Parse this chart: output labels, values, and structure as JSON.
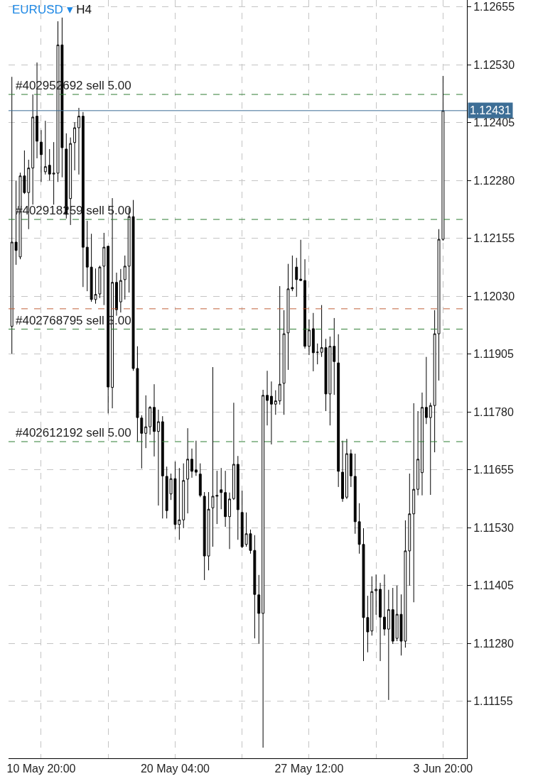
{
  "chart_data": {
    "type": "candlestick",
    "title": "EURUSD ▾",
    "subtitle": "H4",
    "categories": [
      null,
      null,
      null,
      null,
      null,
      null,
      null,
      "10 May 20:00",
      null,
      null,
      null,
      null,
      null,
      null,
      null,
      null,
      null,
      null,
      null,
      null,
      null,
      null,
      null,
      null,
      null,
      null,
      null,
      null,
      null,
      null,
      null,
      null,
      null,
      null,
      null,
      null,
      null,
      null,
      null,
      "20 May 04:00",
      null,
      null,
      null,
      null,
      null,
      null,
      null,
      null,
      null,
      null,
      null,
      null,
      null,
      null,
      null,
      null,
      null,
      null,
      null,
      null,
      null,
      null,
      null,
      null,
      null,
      null,
      null,
      null,
      null,
      null,
      null,
      "27 May 12:00",
      null,
      null,
      null,
      null,
      null,
      null,
      null,
      null,
      null,
      null,
      null,
      null,
      null,
      null,
      null,
      null,
      null,
      null,
      null,
      null,
      null,
      null,
      null,
      null,
      null,
      null,
      null,
      null,
      null,
      null,
      null,
      "3 Jun 20:00"
    ],
    "ohlc": [
      [
        1.11965,
        1.12504,
        1.11906,
        1.12147
      ],
      [
        1.12147,
        1.1228,
        1.12098,
        1.12129
      ],
      [
        1.12115,
        1.12297,
        1.1211,
        1.1229
      ],
      [
        1.1229,
        1.12345,
        1.12251,
        1.12254
      ],
      [
        1.12254,
        1.12325,
        1.12175,
        1.12307
      ],
      [
        1.12307,
        1.12466,
        1.12228,
        1.12417
      ],
      [
        1.12419,
        1.12535,
        1.12328,
        1.12365
      ],
      [
        1.12363,
        1.12389,
        1.12277,
        1.12336
      ],
      [
        1.12299,
        1.12409,
        1.12293,
        1.1231
      ],
      [
        1.12313,
        1.12348,
        1.1228,
        1.12294
      ],
      [
        1.12294,
        1.12363,
        1.12228,
        1.12296
      ],
      [
        1.12296,
        1.12624,
        1.12277,
        1.12573
      ],
      [
        1.12573,
        1.12632,
        1.12287,
        1.12351
      ],
      [
        1.12348,
        1.12382,
        1.12198,
        1.12207
      ],
      [
        1.12241,
        1.12373,
        1.12184,
        1.1236
      ],
      [
        1.12362,
        1.12406,
        1.12302,
        1.12394
      ],
      [
        1.12394,
        1.12437,
        1.12293,
        1.12419
      ],
      [
        1.12419,
        1.12428,
        1.1205,
        1.12136
      ],
      [
        1.12136,
        1.12193,
        1.12041,
        1.12093
      ],
      [
        1.12093,
        1.12165,
        1.12018,
        1.12023
      ],
      [
        1.12023,
        1.1209,
        1.12014,
        1.12034
      ],
      [
        1.12035,
        1.12096,
        1.12026,
        1.12093
      ],
      [
        1.12095,
        1.12167,
        1.12011,
        1.12136
      ],
      [
        1.12138,
        1.12139,
        1.11777,
        1.11834
      ],
      [
        1.11833,
        1.12242,
        1.11788,
        1.1206
      ],
      [
        1.1206,
        1.12081,
        1.11988,
        1.12001
      ],
      [
        1.12018,
        1.12089,
        1.11995,
        1.12064
      ],
      [
        1.12066,
        1.12118,
        1.12023,
        1.12095
      ],
      [
        1.12095,
        1.12221,
        1.12038,
        1.12202
      ],
      [
        1.12202,
        1.12238,
        1.11869,
        1.11874
      ],
      [
        1.11874,
        1.11922,
        1.11716,
        1.11768
      ],
      [
        1.11767,
        1.11773,
        1.11658,
        1.11734
      ],
      [
        1.11734,
        1.11816,
        1.11702,
        1.11748
      ],
      [
        1.11748,
        1.11793,
        1.11731,
        1.1179
      ],
      [
        1.1179,
        1.1184,
        1.11684,
        1.11738
      ],
      [
        1.11738,
        1.11785,
        1.11578,
        1.11759
      ],
      [
        1.11759,
        1.11771,
        1.1155,
        1.11642
      ],
      [
        1.11641,
        1.11662,
        1.1155,
        1.11567
      ],
      [
        1.11603,
        1.11647,
        1.1159,
        1.11636
      ],
      [
        1.11636,
        1.11673,
        1.11527,
        1.11537
      ],
      [
        1.11537,
        1.11659,
        1.11504,
        1.11547
      ],
      [
        1.11547,
        1.11669,
        1.11529,
        1.11632
      ],
      [
        1.11635,
        1.11745,
        1.11561,
        1.11678
      ],
      [
        1.11678,
        1.11701,
        1.11638,
        1.11652
      ],
      [
        1.11655,
        1.11718,
        1.11642,
        1.1165
      ],
      [
        1.11646,
        1.11669,
        1.11596,
        1.116
      ],
      [
        1.11598,
        1.11607,
        1.11417,
        1.11469
      ],
      [
        1.11469,
        1.11607,
        1.11438,
        1.1157
      ],
      [
        1.11573,
        1.11877,
        1.11489,
        1.11598
      ],
      [
        1.11598,
        1.11653,
        1.11538,
        1.116
      ],
      [
        1.11612,
        1.11659,
        1.1157,
        1.11606
      ],
      [
        1.11606,
        1.11653,
        1.11532,
        1.11554
      ],
      [
        1.11554,
        1.11606,
        1.11484,
        1.11592
      ],
      [
        1.11593,
        1.118,
        1.1159,
        1.11667
      ],
      [
        1.11667,
        1.11685,
        1.11504,
        1.11569
      ],
      [
        1.11563,
        1.1161,
        1.11486,
        1.11489
      ],
      [
        1.11494,
        1.11563,
        1.11489,
        1.11517
      ],
      [
        1.11517,
        1.11526,
        1.11474,
        1.11481
      ],
      [
        1.11481,
        1.11514,
        1.11291,
        1.11386
      ],
      [
        1.11385,
        1.11428,
        1.11279,
        1.11345
      ],
      [
        1.11345,
        1.11828,
        1.11055,
        1.11816
      ],
      [
        1.11816,
        1.11869,
        1.11751,
        1.11805
      ],
      [
        1.11814,
        1.11846,
        1.1171,
        1.11797
      ],
      [
        1.11797,
        1.11827,
        1.11774,
        1.11804
      ],
      [
        1.11804,
        1.12052,
        1.11796,
        1.1184
      ],
      [
        1.11842,
        1.12,
        1.11774,
        1.11949
      ],
      [
        1.11951,
        1.121,
        1.11871,
        1.12046
      ],
      [
        1.12049,
        1.12118,
        1.12041,
        1.12046
      ],
      [
        1.12093,
        1.12113,
        1.12029,
        1.12066
      ],
      [
        1.12067,
        1.12152,
        1.12063,
        1.12064
      ],
      [
        1.12064,
        1.1211,
        1.11917,
        1.11922
      ],
      [
        1.11922,
        1.1198,
        1.11903,
        1.11957
      ],
      [
        1.1196,
        1.11994,
        1.11868,
        1.11908
      ],
      [
        1.11909,
        1.11928,
        1.11883,
        1.11909
      ],
      [
        1.11909,
        1.12011,
        1.11899,
        1.11919
      ],
      [
        1.11919,
        1.11938,
        1.11782,
        1.11819
      ],
      [
        1.11819,
        1.11943,
        1.11751,
        1.11922
      ],
      [
        1.11922,
        1.11983,
        1.11817,
        1.11889
      ],
      [
        1.11886,
        1.11948,
        1.11618,
        1.11652
      ],
      [
        1.1165,
        1.11718,
        1.11586,
        1.11593
      ],
      [
        1.11596,
        1.11722,
        1.11592,
        1.1169
      ],
      [
        1.1169,
        1.11699,
        1.11618,
        1.11642
      ],
      [
        1.11641,
        1.1169,
        1.11517,
        1.11543
      ],
      [
        1.11543,
        1.11583,
        1.11474,
        1.11494
      ],
      [
        1.11494,
        1.11529,
        1.11242,
        1.11336
      ],
      [
        1.11336,
        1.11383,
        1.11261,
        1.11305
      ],
      [
        1.11307,
        1.11425,
        1.11297,
        1.11392
      ],
      [
        1.11394,
        1.11429,
        1.11342,
        1.11397
      ],
      [
        1.11397,
        1.11411,
        1.11242,
        1.11337
      ],
      [
        1.11337,
        1.11429,
        1.11297,
        1.11311
      ],
      [
        1.11311,
        1.11396,
        1.11158,
        1.11353
      ],
      [
        1.11353,
        1.114,
        1.11279,
        1.11285
      ],
      [
        1.11291,
        1.11405,
        1.11285,
        1.11343
      ],
      [
        1.11343,
        1.11386,
        1.11254,
        1.11285
      ],
      [
        1.11285,
        1.11546,
        1.11271,
        1.1148
      ],
      [
        1.1148,
        1.11647,
        1.11405,
        1.1156
      ],
      [
        1.1156,
        1.11799,
        1.11369,
        1.11613
      ],
      [
        1.11613,
        1.11782,
        1.116,
        1.11678
      ],
      [
        1.11649,
        1.11822,
        1.116,
        1.1179
      ],
      [
        1.1179,
        1.11899,
        1.11754,
        1.11768
      ],
      [
        1.11768,
        1.118,
        1.11601,
        1.11794
      ],
      [
        1.11794,
        1.12,
        1.11693,
        1.11949
      ],
      [
        1.11949,
        1.12175,
        1.11848,
        1.12153
      ],
      [
        1.12153,
        1.12506,
        1.1215,
        1.12431
      ]
    ],
    "ylim": [
      1.11032,
      1.1267
    ],
    "yticks": [
      {
        "value": 1.11155,
        "label": "1.11155"
      },
      {
        "value": 1.1128,
        "label": "1.11280"
      },
      {
        "value": 1.11405,
        "label": "1.11405"
      },
      {
        "value": 1.1153,
        "label": "1.11530"
      },
      {
        "value": 1.11655,
        "label": "1.11655"
      },
      {
        "value": 1.1178,
        "label": "1.11780"
      },
      {
        "value": 1.11905,
        "label": "1.11905"
      },
      {
        "value": 1.1203,
        "label": "1.12030"
      },
      {
        "value": 1.12155,
        "label": "1.12155"
      },
      {
        "value": 1.1228,
        "label": "1.12280"
      },
      {
        "value": 1.12405,
        "label": "1.12405"
      },
      {
        "value": 1.1253,
        "label": "1.12530"
      },
      {
        "value": 1.12655,
        "label": "1.12655"
      }
    ],
    "ref_lines": [
      {
        "axis": "y",
        "value": 1.12466,
        "label": "#402952692 sell 5.00",
        "color": "#2e7d32",
        "line_style": "dashed"
      },
      {
        "axis": "y",
        "value": 1.12196,
        "label": "#402918259 sell 5.00",
        "color": "#2e7d32",
        "line_style": "dashed"
      },
      {
        "axis": "y",
        "value": 1.12003,
        "color": "#c0603a",
        "line_style": "dashed"
      },
      {
        "axis": "y",
        "value": 1.11959,
        "label": "#402768795 sell 5.00",
        "color": "#2e7d32",
        "line_style": "dashed"
      },
      {
        "axis": "y",
        "value": 1.11716,
        "label": "#402612192 sell 5.00",
        "color": "#2e7d32",
        "line_style": "dashed"
      },
      {
        "axis": "y",
        "value": 1.12431,
        "label": "1.12431",
        "color": "#3d6e96",
        "line_style": "solid"
      }
    ],
    "grid": true,
    "legend": false
  }
}
